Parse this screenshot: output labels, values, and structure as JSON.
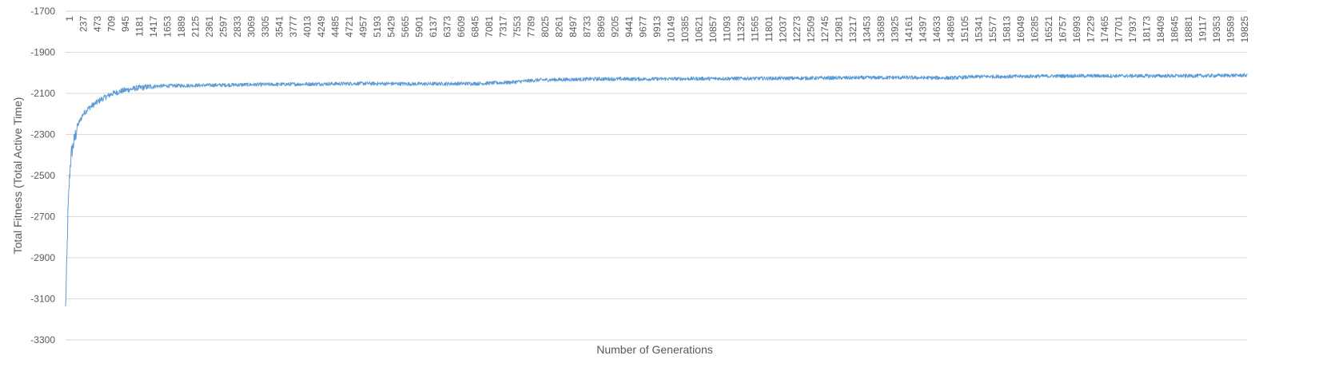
{
  "chart_data": {
    "type": "line",
    "title": "",
    "xlabel": "Number of Generations",
    "ylabel": "Total Fitness (Total Active Time)",
    "ylim": [
      -3300,
      -1700
    ],
    "xlim": [
      1,
      20000
    ],
    "y_ticks": [
      -1700,
      -1900,
      -2100,
      -2300,
      -2500,
      -2700,
      -2900,
      -3100,
      -3300
    ],
    "x_tick_labels": [
      "1",
      "237",
      "473",
      "709",
      "945",
      "1181",
      "1417",
      "1653",
      "1889",
      "2125",
      "2361",
      "2597",
      "2833",
      "3069",
      "3305",
      "3541",
      "3777",
      "4013",
      "4249",
      "4485",
      "4721",
      "4957",
      "5193",
      "5429",
      "5665",
      "5901",
      "6137",
      "6373",
      "6609",
      "6845",
      "7081",
      "7317",
      "7553",
      "7789",
      "8025",
      "8261",
      "8497",
      "8733",
      "8969",
      "9205",
      "9441",
      "9677",
      "9913",
      "10149",
      "10385",
      "10621",
      "10857",
      "11093",
      "11329",
      "11565",
      "11801",
      "12037",
      "12273",
      "12509",
      "12745",
      "12981",
      "13217",
      "13453",
      "13689",
      "13925",
      "14161",
      "14397",
      "14633",
      "14869",
      "15105",
      "15341",
      "15577",
      "15813",
      "16049",
      "16285",
      "16521",
      "16757",
      "16993",
      "17229",
      "17465",
      "17701",
      "17937",
      "18173",
      "18409",
      "18645",
      "18881",
      "19117",
      "19353",
      "19589",
      "19825"
    ],
    "grid": true,
    "legend": "none",
    "series": [
      {
        "color": "#5b9bd5",
        "x": [
          1,
          20,
          40,
          60,
          80,
          100,
          150,
          200,
          300,
          400,
          500,
          600,
          700,
          800,
          1000,
          1200,
          1500,
          2000,
          3000,
          4000,
          5000,
          6000,
          7000,
          7500,
          8000,
          9000,
          10000,
          11000,
          12000,
          13000,
          14000,
          15000,
          15500,
          16000,
          17000,
          18000,
          19000,
          20000
        ],
        "values": [
          -3150,
          -2950,
          -2700,
          -2560,
          -2450,
          -2390,
          -2330,
          -2260,
          -2200,
          -2170,
          -2150,
          -2130,
          -2115,
          -2100,
          -2085,
          -2075,
          -2065,
          -2062,
          -2058,
          -2055,
          -2052,
          -2054,
          -2052,
          -2047,
          -2035,
          -2030,
          -2030,
          -2028,
          -2027,
          -2025,
          -2023,
          -2025,
          -2018,
          -2018,
          -2015,
          -2015,
          -2015,
          -2012
        ]
      }
    ]
  }
}
